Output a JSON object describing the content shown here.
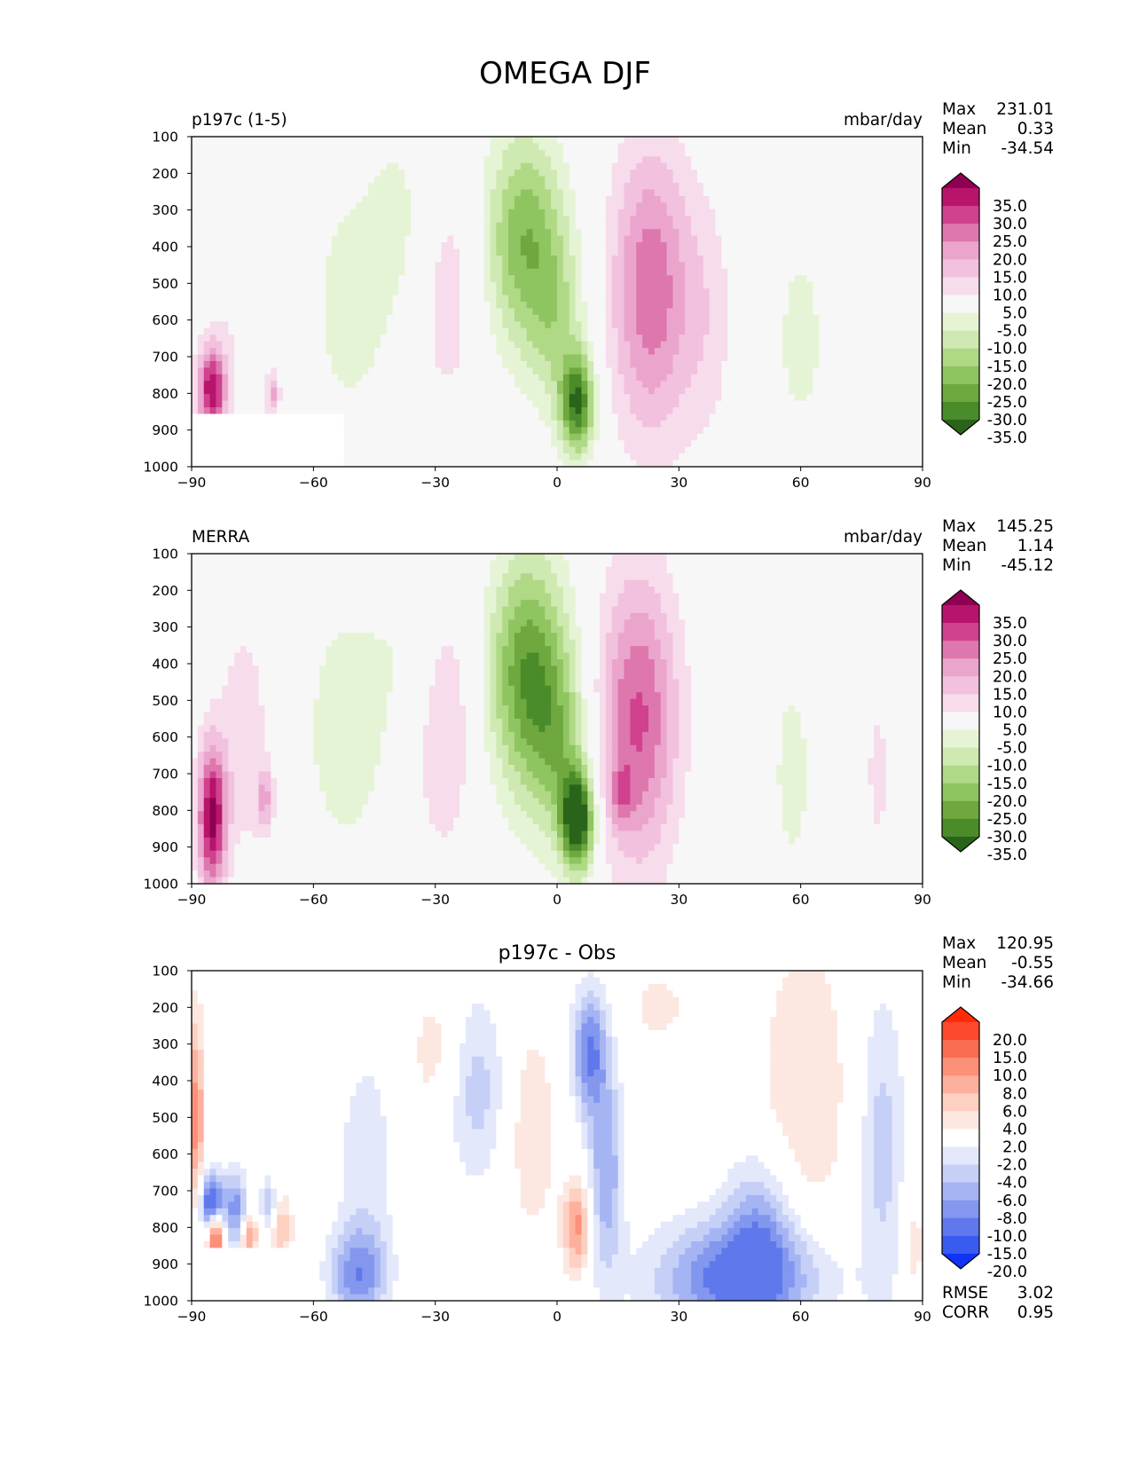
{
  "figure": {
    "title": "OMEGA DJF"
  },
  "chart_data": [
    {
      "type": "heatmap",
      "title": "",
      "left_label": "p197c (1-5)",
      "units": "mbar/day",
      "xlabel": "",
      "ylabel": "",
      "x_ticks": [
        "−90",
        "−60",
        "−30",
        "0",
        "30",
        "60",
        "90"
      ],
      "y_ticks": [
        "100",
        "200",
        "300",
        "400",
        "500",
        "600",
        "700",
        "800",
        "900",
        "1000"
      ],
      "xlim": [
        -90,
        90
      ],
      "ylim": [
        1000,
        100
      ],
      "stats": [
        {
          "label": "Max",
          "value": "231.01"
        },
        {
          "label": "Mean",
          "value": "0.33"
        },
        {
          "label": "Min",
          "value": "-34.54"
        }
      ],
      "colorbar": {
        "levels": [
          "35.0",
          "30.0",
          "25.0",
          "20.0",
          "15.0",
          "10.0",
          "5.0",
          "-5.0",
          "-10.0",
          "-15.0",
          "-20.0",
          "-25.0",
          "-30.0",
          "-35.0"
        ],
        "colors": [
          "#8e0152",
          "#b8146b",
          "#d0418e",
          "#de77ae",
          "#eba5cd",
          "#f1c1de",
          "#f7dcec",
          "#f7f7f7",
          "#e6f4d6",
          "#cfe9b2",
          "#b0d986",
          "#8fc561",
          "#6ea83e",
          "#4a8b2a",
          "#2a641a"
        ]
      },
      "mask_region": {
        "lon_max": -52,
        "pressure_min": 862
      },
      "features": [
        {
          "lon": -85,
          "lev": 790,
          "w": 2.5,
          "h": 85,
          "amp": 34
        },
        {
          "lon": -78,
          "lev": 500,
          "w": 5,
          "h": 250,
          "amp": 5
        },
        {
          "lon": -70,
          "lev": 800,
          "w": 1.2,
          "h": 40,
          "amp": 16
        },
        {
          "lon": -51,
          "lev": 560,
          "w": 8,
          "h": 270,
          "amp": -7
        },
        {
          "lon": -38,
          "lev": 320,
          "w": 6,
          "h": 200,
          "amp": -6
        },
        {
          "lon": -27,
          "lev": 520,
          "w": 6,
          "h": 260,
          "amp": 8
        },
        {
          "lon": -8,
          "lev": 380,
          "w": 7,
          "h": 210,
          "amp": -24
        },
        {
          "lon": 5,
          "lev": 830,
          "w": 3,
          "h": 95,
          "amp": -34
        },
        {
          "lon": 0,
          "lev": 620,
          "w": 5,
          "h": 170,
          "amp": -12
        },
        {
          "lon": 23,
          "lev": 520,
          "w": 7,
          "h": 280,
          "amp": 24
        },
        {
          "lon": 37,
          "lev": 600,
          "w": 5,
          "h": 250,
          "amp": 7
        },
        {
          "lon": 60,
          "lev": 650,
          "w": 5,
          "h": 220,
          "amp": -7
        },
        {
          "lon": 79,
          "lev": 650,
          "w": 4,
          "h": 200,
          "amp": 5
        }
      ]
    },
    {
      "type": "heatmap",
      "title": "",
      "left_label": "MERRA",
      "units": "mbar/day",
      "xlabel": "",
      "ylabel": "",
      "x_ticks": [
        "−90",
        "−60",
        "−30",
        "0",
        "30",
        "60",
        "90"
      ],
      "y_ticks": [
        "100",
        "200",
        "300",
        "400",
        "500",
        "600",
        "700",
        "800",
        "900",
        "1000"
      ],
      "xlim": [
        -90,
        90
      ],
      "ylim": [
        1000,
        100
      ],
      "stats": [
        {
          "label": "Max",
          "value": "145.25"
        },
        {
          "label": "Mean",
          "value": "1.14"
        },
        {
          "label": "Min",
          "value": "-45.12"
        }
      ],
      "colorbar": {
        "levels": [
          "35.0",
          "30.0",
          "25.0",
          "20.0",
          "15.0",
          "10.0",
          "5.0",
          "-5.0",
          "-10.0",
          "-15.0",
          "-20.0",
          "-25.0",
          "-30.0",
          "-35.0"
        ],
        "colors": [
          "#8e0152",
          "#b8146b",
          "#d0418e",
          "#de77ae",
          "#eba5cd",
          "#f1c1de",
          "#f7dcec",
          "#f7f7f7",
          "#e6f4d6",
          "#cfe9b2",
          "#b0d986",
          "#8fc561",
          "#6ea83e",
          "#4a8b2a",
          "#2a641a"
        ]
      },
      "features": [
        {
          "lon": -85,
          "lev": 820,
          "w": 2.5,
          "h": 140,
          "amp": 36
        },
        {
          "lon": -77,
          "lev": 600,
          "w": 5,
          "h": 250,
          "amp": 8
        },
        {
          "lon": -72,
          "lev": 770,
          "w": 1.5,
          "h": 60,
          "amp": 14
        },
        {
          "lon": -52,
          "lev": 580,
          "w": 8,
          "h": 270,
          "amp": -8
        },
        {
          "lon": -36,
          "lev": 350,
          "w": 6,
          "h": 200,
          "amp": -5
        },
        {
          "lon": -28,
          "lev": 560,
          "w": 6,
          "h": 270,
          "amp": 10
        },
        {
          "lon": -7,
          "lev": 430,
          "w": 7,
          "h": 230,
          "amp": -30
        },
        {
          "lon": 5,
          "lev": 830,
          "w": 2.8,
          "h": 95,
          "amp": -42
        },
        {
          "lon": 1,
          "lev": 650,
          "w": 5,
          "h": 180,
          "amp": -14
        },
        {
          "lon": 20,
          "lev": 550,
          "w": 7,
          "h": 280,
          "amp": 26
        },
        {
          "lon": 16,
          "lev": 760,
          "w": 2,
          "h": 60,
          "amp": 12
        },
        {
          "lon": 58,
          "lev": 700,
          "w": 4,
          "h": 230,
          "amp": -7
        },
        {
          "lon": 79,
          "lev": 700,
          "w": 3,
          "h": 230,
          "amp": 6
        }
      ]
    },
    {
      "type": "heatmap",
      "title": "p197c - Obs",
      "left_label": "",
      "units": "",
      "xlabel": "",
      "ylabel": "",
      "x_ticks": [
        "−90",
        "−60",
        "−30",
        "0",
        "30",
        "60",
        "90"
      ],
      "y_ticks": [
        "100",
        "200",
        "300",
        "400",
        "500",
        "600",
        "700",
        "800",
        "900",
        "1000"
      ],
      "xlim": [
        -90,
        90
      ],
      "ylim": [
        1000,
        100
      ],
      "stats": [
        {
          "label": "Max",
          "value": "120.95"
        },
        {
          "label": "Mean",
          "value": "-0.55"
        },
        {
          "label": "Min",
          "value": "-34.66"
        }
      ],
      "extra_stats": [
        {
          "label": "RMSE",
          "value": "3.02"
        },
        {
          "label": "CORR",
          "value": "0.95"
        }
      ],
      "colorbar": {
        "levels": [
          "20.0",
          "15.0",
          "10.0",
          "8.0",
          "6.0",
          "4.0",
          "2.0",
          "-2.0",
          "-4.0",
          "-6.0",
          "-8.0",
          "-10.0",
          "-15.0",
          "-20.0"
        ],
        "colors": [
          "#ff2a06",
          "#fd4a2e",
          "#fb6d52",
          "#fc9078",
          "#fdb09d",
          "#fed0c2",
          "#fde8e1",
          "#ffffff",
          "#e3e8fb",
          "#c6d0f7",
          "#a5b4f3",
          "#8397ef",
          "#5f78ec",
          "#3a5bef",
          "#1034f6"
        ]
      },
      "mask_region": {
        "lon_max": -62,
        "pressure_min": 862
      },
      "features": [
        {
          "lon": -89,
          "lev": 500,
          "w": 1.5,
          "h": 200,
          "amp": 9
        },
        {
          "lon": -85,
          "lev": 740,
          "w": 2.2,
          "h": 60,
          "amp": -15
        },
        {
          "lon": -84,
          "lev": 820,
          "w": 1.5,
          "h": 50,
          "amp": 16
        },
        {
          "lon": -79,
          "lev": 760,
          "w": 2,
          "h": 80,
          "amp": -9
        },
        {
          "lon": -76,
          "lev": 820,
          "w": 1.5,
          "h": 40,
          "amp": 10
        },
        {
          "lon": -71,
          "lev": 740,
          "w": 1.5,
          "h": 50,
          "amp": -7
        },
        {
          "lon": -68,
          "lev": 800,
          "w": 2,
          "h": 70,
          "amp": 6
        },
        {
          "lon": -49,
          "lev": 930,
          "w": 5,
          "h": 90,
          "amp": -9
        },
        {
          "lon": -47,
          "lev": 620,
          "w": 5,
          "h": 220,
          "amp": -3.5
        },
        {
          "lon": -30,
          "lev": 320,
          "w": 5,
          "h": 130,
          "amp": 3
        },
        {
          "lon": -20,
          "lev": 420,
          "w": 5,
          "h": 180,
          "amp": -5
        },
        {
          "lon": -6,
          "lev": 540,
          "w": 4,
          "h": 200,
          "amp": 4
        },
        {
          "lon": 5,
          "lev": 800,
          "w": 2.5,
          "h": 90,
          "amp": 9
        },
        {
          "lon": 8,
          "lev": 320,
          "w": 3,
          "h": 120,
          "amp": -10
        },
        {
          "lon": 12,
          "lev": 650,
          "w": 3,
          "h": 200,
          "amp": -8
        },
        {
          "lon": 25,
          "lev": 200,
          "w": 5,
          "h": 70,
          "amp": 3
        },
        {
          "lon": 45,
          "lev": 940,
          "w": 14,
          "h": 110,
          "amp": -12
        },
        {
          "lon": 50,
          "lev": 780,
          "w": 6,
          "h": 140,
          "amp": -6
        },
        {
          "lon": 61,
          "lev": 420,
          "w": 8,
          "h": 300,
          "amp": 4
        },
        {
          "lon": 80,
          "lev": 580,
          "w": 4,
          "h": 300,
          "amp": -5
        },
        {
          "lon": 88,
          "lev": 850,
          "w": 2,
          "h": 120,
          "amp": 3
        }
      ]
    }
  ]
}
